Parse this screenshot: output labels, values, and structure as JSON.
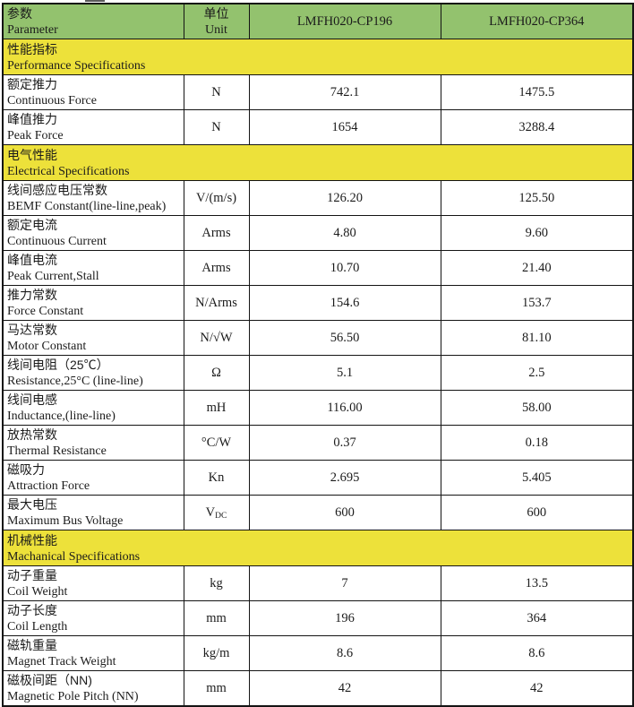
{
  "colors": {
    "header_bg": "#93c26e",
    "section_bg": "#ede13a",
    "border": "#141414",
    "text": "#1b1b1b"
  },
  "header": {
    "param_zh": "参数",
    "param_en": "Parameter",
    "unit_zh": "单位",
    "unit_en": "Unit",
    "model1": "LMFH020-CP196",
    "model2": "LMFH020-CP364"
  },
  "rows": [
    {
      "type": "section",
      "zh": "性能指标",
      "en": "Performance Specifications"
    },
    {
      "type": "data",
      "zh": "额定推力",
      "en": "Continuous Force",
      "unit": "N",
      "v1": "742.1",
      "v2": "1475.5"
    },
    {
      "type": "data",
      "zh": "峰值推力",
      "en": "Peak Force",
      "unit": "N",
      "v1": "1654",
      "v2": "3288.4"
    },
    {
      "type": "section",
      "zh": "电气性能",
      "en": "Electrical Specifications"
    },
    {
      "type": "data",
      "zh": "线间感应电压常数",
      "en": "BEMF Constant(line-line,peak)",
      "unit": "V/(m/s)",
      "v1": "126.20",
      "v2": "125.50"
    },
    {
      "type": "data",
      "zh": "额定电流",
      "en": "Continuous Current",
      "unit": "Arms",
      "v1": "4.80",
      "v2": "9.60"
    },
    {
      "type": "data",
      "zh": "峰值电流",
      "en": "Peak Current,Stall",
      "unit": "Arms",
      "v1": "10.70",
      "v2": "21.40"
    },
    {
      "type": "data",
      "zh": "推力常数",
      "en": "Force Constant",
      "unit": "N/Arms",
      "v1": "154.6",
      "v2": "153.7"
    },
    {
      "type": "data",
      "zh": "马达常数",
      "en": "Motor Constant",
      "unit": "N/√W",
      "v1": "56.50",
      "v2": "81.10"
    },
    {
      "type": "data",
      "zh": "线间电阻（25℃）",
      "en": "Resistance,25°C (line-line)",
      "unit": "Ω",
      "v1": "5.1",
      "v2": "2.5"
    },
    {
      "type": "data",
      "zh": "线间电感",
      "en": "Inductance,(line-line)",
      "unit": "mH",
      "v1": "116.00",
      "v2": "58.00"
    },
    {
      "type": "data",
      "zh": "放热常数",
      "en": "Thermal Resistance",
      "unit": "°C/W",
      "v1": "0.37",
      "v2": "0.18"
    },
    {
      "type": "data",
      "zh": "磁吸力",
      "en": "Attraction Force",
      "unit": "Kn",
      "v1": "2.695",
      "v2": "5.405"
    },
    {
      "type": "data",
      "zh": "最大电压",
      "en": "Maximum Bus Voltage",
      "unit": "V",
      "unit_sub": "DC",
      "v1": "600",
      "v2": "600"
    },
    {
      "type": "section",
      "zh": "机械性能",
      "en": "Machanical Specifications"
    },
    {
      "type": "data",
      "zh": "动子重量",
      "en": "Coil Weight",
      "unit": "kg",
      "v1": "7",
      "v2": "13.5"
    },
    {
      "type": "data",
      "zh": "动子长度",
      "en": "Coil Length",
      "unit": "mm",
      "v1": "196",
      "v2": "364"
    },
    {
      "type": "data",
      "zh": "磁轨重量",
      "en": "Magnet Track Weight",
      "unit": "kg/m",
      "v1": "8.6",
      "v2": "8.6"
    },
    {
      "type": "data",
      "zh": "磁极间距（NN)",
      "en": "Magnetic Pole Pitch (NN)",
      "unit": "mm",
      "v1": "42",
      "v2": "42"
    }
  ]
}
